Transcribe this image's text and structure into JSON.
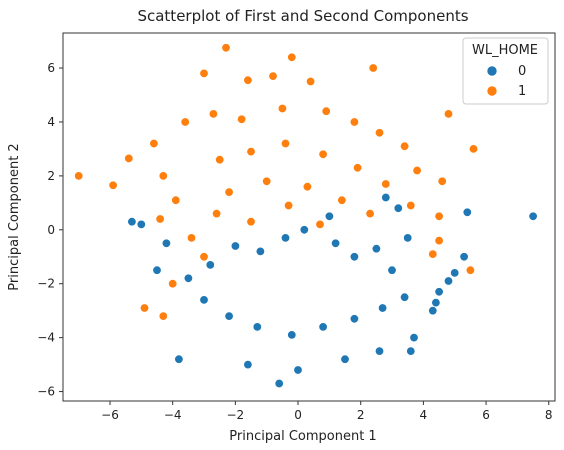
{
  "chart_data": {
    "type": "scatter",
    "title": "Scatterplot of First and Second Components",
    "xlabel": "Principal Component 1",
    "ylabel": "Principal Component 2",
    "xlim": [
      -7.5,
      8.2
    ],
    "ylim": [
      -6.35,
      7.3
    ],
    "xticks": [
      -6,
      -4,
      -2,
      0,
      2,
      4,
      6,
      8
    ],
    "yticks": [
      -6,
      -4,
      -2,
      0,
      2,
      4,
      6
    ],
    "x_tick_labels": [
      "−6",
      "−4",
      "−2",
      "0",
      "2",
      "4",
      "6",
      "8"
    ],
    "y_tick_labels": [
      "−6",
      "−4",
      "−2",
      "0",
      "2",
      "4",
      "6"
    ],
    "grid": false,
    "legend": {
      "title": "WL_HOME",
      "placement": "top-right",
      "entries": [
        "0",
        "1"
      ]
    },
    "series": [
      {
        "name": "0",
        "color": "#1f77b4",
        "points": [
          [
            7.5,
            0.5
          ],
          [
            5.4,
            0.65
          ],
          [
            5.3,
            -1.0
          ],
          [
            5.0,
            -1.6
          ],
          [
            4.8,
            -1.9
          ],
          [
            4.5,
            -2.3
          ],
          [
            4.4,
            -2.7
          ],
          [
            4.3,
            -3.0
          ],
          [
            3.6,
            -4.5
          ],
          [
            3.7,
            -4.0
          ],
          [
            2.6,
            -4.5
          ],
          [
            -3.8,
            -4.8
          ],
          [
            -1.6,
            -5.0
          ],
          [
            -0.6,
            -5.7
          ],
          [
            0.0,
            -5.2
          ],
          [
            1.5,
            -4.8
          ],
          [
            -4.5,
            -1.5
          ],
          [
            -4.2,
            -0.5
          ],
          [
            -5.3,
            0.3
          ],
          [
            -5.0,
            0.2
          ],
          [
            1.2,
            -0.5
          ],
          [
            1.8,
            -1.0
          ],
          [
            2.5,
            -0.7
          ],
          [
            3.0,
            -1.5
          ],
          [
            3.5,
            -0.3
          ],
          [
            3.2,
            0.8
          ],
          [
            2.8,
            1.2
          ],
          [
            1.0,
            0.5
          ],
          [
            0.2,
            0.0
          ],
          [
            -0.4,
            -0.3
          ],
          [
            -1.2,
            -0.8
          ],
          [
            -2.0,
            -0.6
          ],
          [
            -2.8,
            -1.3
          ],
          [
            -3.5,
            -1.8
          ],
          [
            -3.0,
            -2.6
          ],
          [
            -2.2,
            -3.2
          ],
          [
            -1.3,
            -3.6
          ],
          [
            -0.2,
            -3.9
          ],
          [
            0.8,
            -3.6
          ],
          [
            1.8,
            -3.3
          ],
          [
            2.7,
            -2.9
          ],
          [
            3.4,
            -2.5
          ]
        ]
      },
      {
        "name": "1",
        "color": "#ff7f0e",
        "points": [
          [
            -7.0,
            2.0
          ],
          [
            -5.9,
            1.65
          ],
          [
            -5.4,
            2.65
          ],
          [
            -2.3,
            6.75
          ],
          [
            -3.0,
            5.8
          ],
          [
            -1.6,
            5.55
          ],
          [
            -0.8,
            5.7
          ],
          [
            -0.2,
            6.4
          ],
          [
            0.4,
            5.5
          ],
          [
            2.4,
            6.0
          ],
          [
            4.8,
            4.3
          ],
          [
            5.6,
            3.0
          ],
          [
            4.6,
            1.8
          ],
          [
            4.5,
            0.5
          ],
          [
            5.5,
            -1.5
          ],
          [
            4.5,
            -0.4
          ],
          [
            4.3,
            -0.9
          ],
          [
            -4.6,
            3.2
          ],
          [
            -4.9,
            -2.9
          ],
          [
            -4.3,
            -3.2
          ],
          [
            -3.6,
            4.0
          ],
          [
            -2.7,
            4.3
          ],
          [
            -1.8,
            4.1
          ],
          [
            -0.5,
            4.5
          ],
          [
            0.9,
            4.4
          ],
          [
            1.8,
            4.0
          ],
          [
            2.6,
            3.6
          ],
          [
            3.4,
            3.1
          ],
          [
            3.8,
            2.2
          ],
          [
            -4.3,
            2.0
          ],
          [
            -3.9,
            1.1
          ],
          [
            -4.4,
            0.4
          ],
          [
            -3.4,
            -0.3
          ],
          [
            -2.5,
            2.6
          ],
          [
            -1.5,
            2.9
          ],
          [
            -0.4,
            3.2
          ],
          [
            0.8,
            2.8
          ],
          [
            1.9,
            2.3
          ],
          [
            2.8,
            1.7
          ],
          [
            3.6,
            0.9
          ],
          [
            -2.2,
            1.4
          ],
          [
            -1.0,
            1.8
          ],
          [
            0.3,
            1.6
          ],
          [
            1.4,
            1.1
          ],
          [
            2.3,
            0.6
          ],
          [
            -3.0,
            -1.0
          ],
          [
            -4.0,
            -2.0
          ],
          [
            -2.6,
            0.6
          ],
          [
            -1.5,
            0.3
          ],
          [
            -0.3,
            0.9
          ],
          [
            0.7,
            0.2
          ]
        ]
      }
    ]
  }
}
